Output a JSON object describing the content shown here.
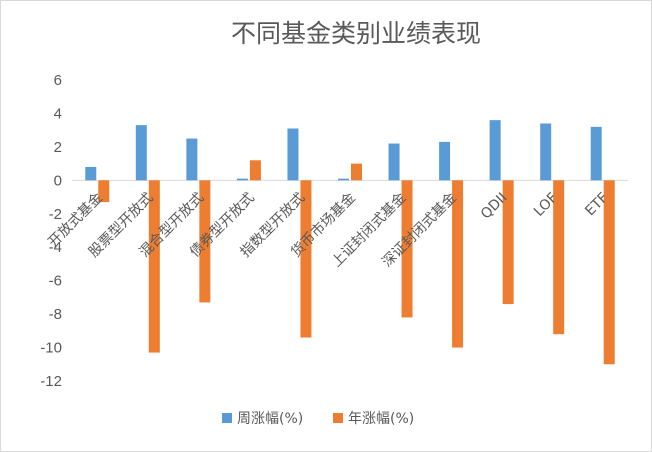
{
  "chart_data": {
    "type": "bar",
    "title": "不同基金类别业绩表现",
    "categories": [
      "开放式基金",
      "股票型开放式",
      "混合型开放式",
      "债券型开放式",
      "指数型开放式",
      "货币市场基金",
      "上证封闭式基金",
      "深证封闭式基金",
      "QDII",
      "LOF",
      "ETF"
    ],
    "series": [
      {
        "name": "周涨幅(%)",
        "color": "#5b9bd5",
        "values": [
          0.8,
          3.3,
          2.5,
          0.1,
          3.1,
          0.1,
          2.2,
          2.3,
          3.6,
          3.4,
          3.2
        ]
      },
      {
        "name": "年涨幅(%)",
        "color": "#ed7d31",
        "values": [
          -1.3,
          -10.3,
          -7.3,
          1.2,
          -9.4,
          1.0,
          -8.2,
          -10.0,
          -7.4,
          -9.2,
          -11.0
        ]
      }
    ],
    "ylim": [
      -12,
      6
    ],
    "yticks": [
      6,
      4,
      2,
      0,
      -2,
      -4,
      -6,
      -8,
      -10,
      -12
    ],
    "ytick_labels": [
      "6",
      "4",
      "2",
      "0",
      "-2",
      "-4",
      "-6",
      "-8",
      "-10",
      "-12"
    ],
    "xlabel": "",
    "ylabel": "",
    "grid": false,
    "legend_position": "bottom"
  }
}
